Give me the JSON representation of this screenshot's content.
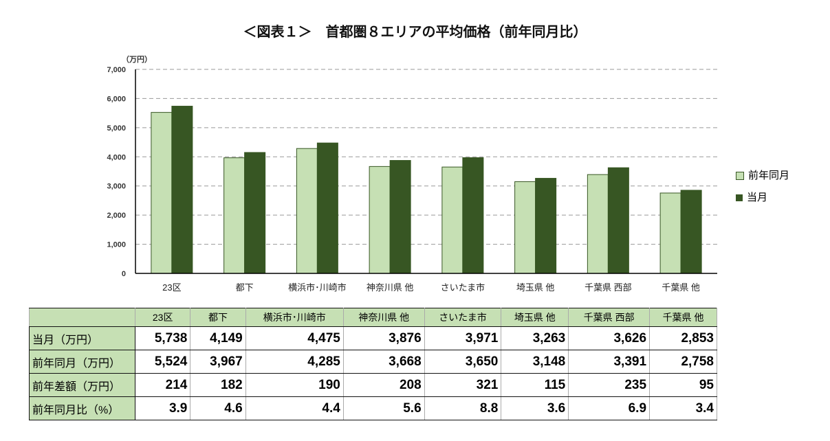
{
  "chart_data": {
    "type": "bar",
    "title": "＜図表１＞　首都圏８エリアの平均価格（前年同月比）",
    "ylabel": "（万円）",
    "ylim": [
      0,
      7000
    ],
    "yticks": [
      "0",
      "1,000",
      "2,000",
      "3,000",
      "4,000",
      "5,000",
      "6,000",
      "7,000"
    ],
    "grid": true,
    "legend_position": "right",
    "categories": [
      "23区",
      "都下",
      "横浜市･川崎市",
      "神奈川県 他",
      "さいたま市",
      "埼玉県 他",
      "千葉県 西部",
      "千葉県 他"
    ],
    "series": [
      {
        "name": "前年同月",
        "color": "#c6e0b4",
        "values": [
          5524,
          3967,
          4285,
          3668,
          3650,
          3148,
          3391,
          2758
        ]
      },
      {
        "name": "当月",
        "color": "#375623",
        "values": [
          5738,
          4149,
          4475,
          3876,
          3971,
          3263,
          3626,
          2853
        ]
      }
    ]
  },
  "table": {
    "header": [
      "23区",
      "都下",
      "横浜市･川崎市",
      "神奈川県 他",
      "さいたま市",
      "埼玉県 他",
      "千葉県 西部",
      "千葉県 他"
    ],
    "rows": [
      {
        "label": "当月（万円）",
        "values": [
          "5,738",
          "4,149",
          "4,475",
          "3,876",
          "3,971",
          "3,263",
          "3,626",
          "2,853"
        ]
      },
      {
        "label": "前年同月（万円）",
        "values": [
          "5,524",
          "3,967",
          "4,285",
          "3,668",
          "3,650",
          "3,148",
          "3,391",
          "2,758"
        ]
      },
      {
        "label": "前年差額（万円）",
        "values": [
          "214",
          "182",
          "190",
          "208",
          "321",
          "115",
          "235",
          "95"
        ]
      },
      {
        "label": "前年同月比（%）",
        "values": [
          "3.9",
          "4.6",
          "4.4",
          "5.6",
          "8.8",
          "3.6",
          "6.9",
          "3.4"
        ]
      }
    ]
  }
}
